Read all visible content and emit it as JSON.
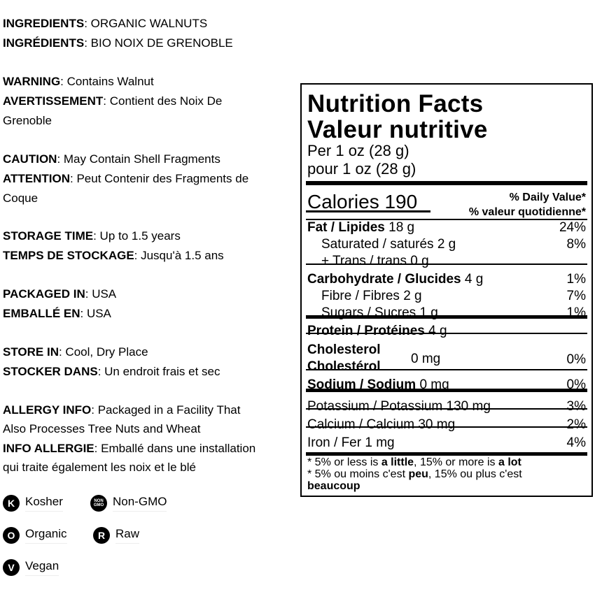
{
  "info": [
    {
      "label": "INGREDIENTS",
      "text": ": ORGANIC WALNUTS"
    },
    {
      "label": "INGRÉDIENTS",
      "text": ": BIO NOIX DE GRENOBLE"
    },
    {
      "label": "WARNING",
      "text": ": Contains Walnut"
    },
    {
      "label": "AVERTISSEMENT",
      "text": ": Contient des Noix De"
    },
    {
      "label": "",
      "text": "Grenoble"
    },
    {
      "label": "CAUTION",
      "text": ": May Contain Shell Fragments"
    },
    {
      "label": "ATTENTION",
      "text": ": Peut Contenir des Fragments de"
    },
    {
      "label": "",
      "text": "Coque"
    },
    {
      "label": "STORAGE TIME",
      "text": ": Up to 1.5 years"
    },
    {
      "label": "TEMPS DE STOCKAGE",
      "text": ": Jusqu'à 1.5 ans"
    },
    {
      "label": "PACKAGED IN",
      "text": ": USA"
    },
    {
      "label": "EMBALLÉ EN",
      "text": ": USA"
    },
    {
      "label": "STORE IN",
      "text": ": Cool, Dry Place"
    },
    {
      "label": "STOCKER DANS",
      "text": ": Un endroit frais et sec"
    },
    {
      "label": "ALLERGY INFO",
      "text": ": Packaged in a Facility That"
    },
    {
      "label": "",
      "text": "Also Processes Tree Nuts and Wheat"
    },
    {
      "label": "INFO ALLERGIE",
      "text": ": Emballé dans une installation"
    },
    {
      "label": "",
      "text": "qui traite également les noix et le blé"
    }
  ],
  "badges": [
    {
      "icon": "K",
      "name": "kosher-icon",
      "label": "Kosher"
    },
    {
      "icon": "NON GMO",
      "name": "non-gmo-icon",
      "label": "Non-GMO"
    },
    {
      "icon": "O",
      "name": "organic-icon",
      "label": "Organic"
    },
    {
      "icon": "R",
      "name": "raw-icon",
      "label": "Raw"
    },
    {
      "icon": "V",
      "name": "vegan-icon",
      "label": "Vegan"
    }
  ],
  "nutrition": {
    "title_en": "Nutrition Facts",
    "title_fr": "Valeur nutritive",
    "serving_en": "Per 1 oz (28 g)",
    "serving_fr": "pour 1 oz (28 g)",
    "calories_label": "Calories",
    "calories": "190",
    "dv_en": "% Daily Value*",
    "dv_fr": "% valeur quotidienne*",
    "rows": [
      {
        "bold": "Fat / Lipides",
        "amt": " 18 g",
        "dv": "24%"
      },
      {
        "bold": "",
        "amt": "Saturated / saturés 2 g",
        "dv": "8%"
      },
      {
        "bold": "",
        "amt": "+ Trans / trans 0 g",
        "dv": ""
      },
      {
        "bold": "Carbohydrate / Glucides",
        "amt": " 4 g",
        "dv": "1%"
      },
      {
        "bold": "",
        "amt": "Fibre / Fibres 2 g",
        "dv": "7%"
      },
      {
        "bold": "",
        "amt": "Sugars / Sucres 1 g",
        "dv": "1%"
      },
      {
        "bold": "Protein / Protéines",
        "amt": " 4 g",
        "dv": ""
      },
      {
        "bold": "Sodium / Sodium",
        "amt": " 0 mg",
        "dv": "0%"
      },
      {
        "bold": "",
        "amt": "Potassium / Potassium 130 mg",
        "dv": "3%"
      },
      {
        "bold": "",
        "amt": "Calcium / Calcium 30 mg",
        "dv": "2%"
      },
      {
        "bold": "",
        "amt": "Iron / Fer 1 mg",
        "dv": "4%"
      }
    ],
    "chol_en": "Cholesterol",
    "chol_fr": "Cholestérol",
    "chol_amt": "0 mg",
    "chol_dv": "0%",
    "foot1a": "* 5% or less is ",
    "foot1b": "a little",
    "foot1c": ", 15% or more is ",
    "foot1d": "a lot",
    "foot2a": "* 5% ou moins c'est ",
    "foot2b": "peu",
    "foot2c": ", 15% ou plus c'est",
    "foot3": "beaucoup"
  }
}
